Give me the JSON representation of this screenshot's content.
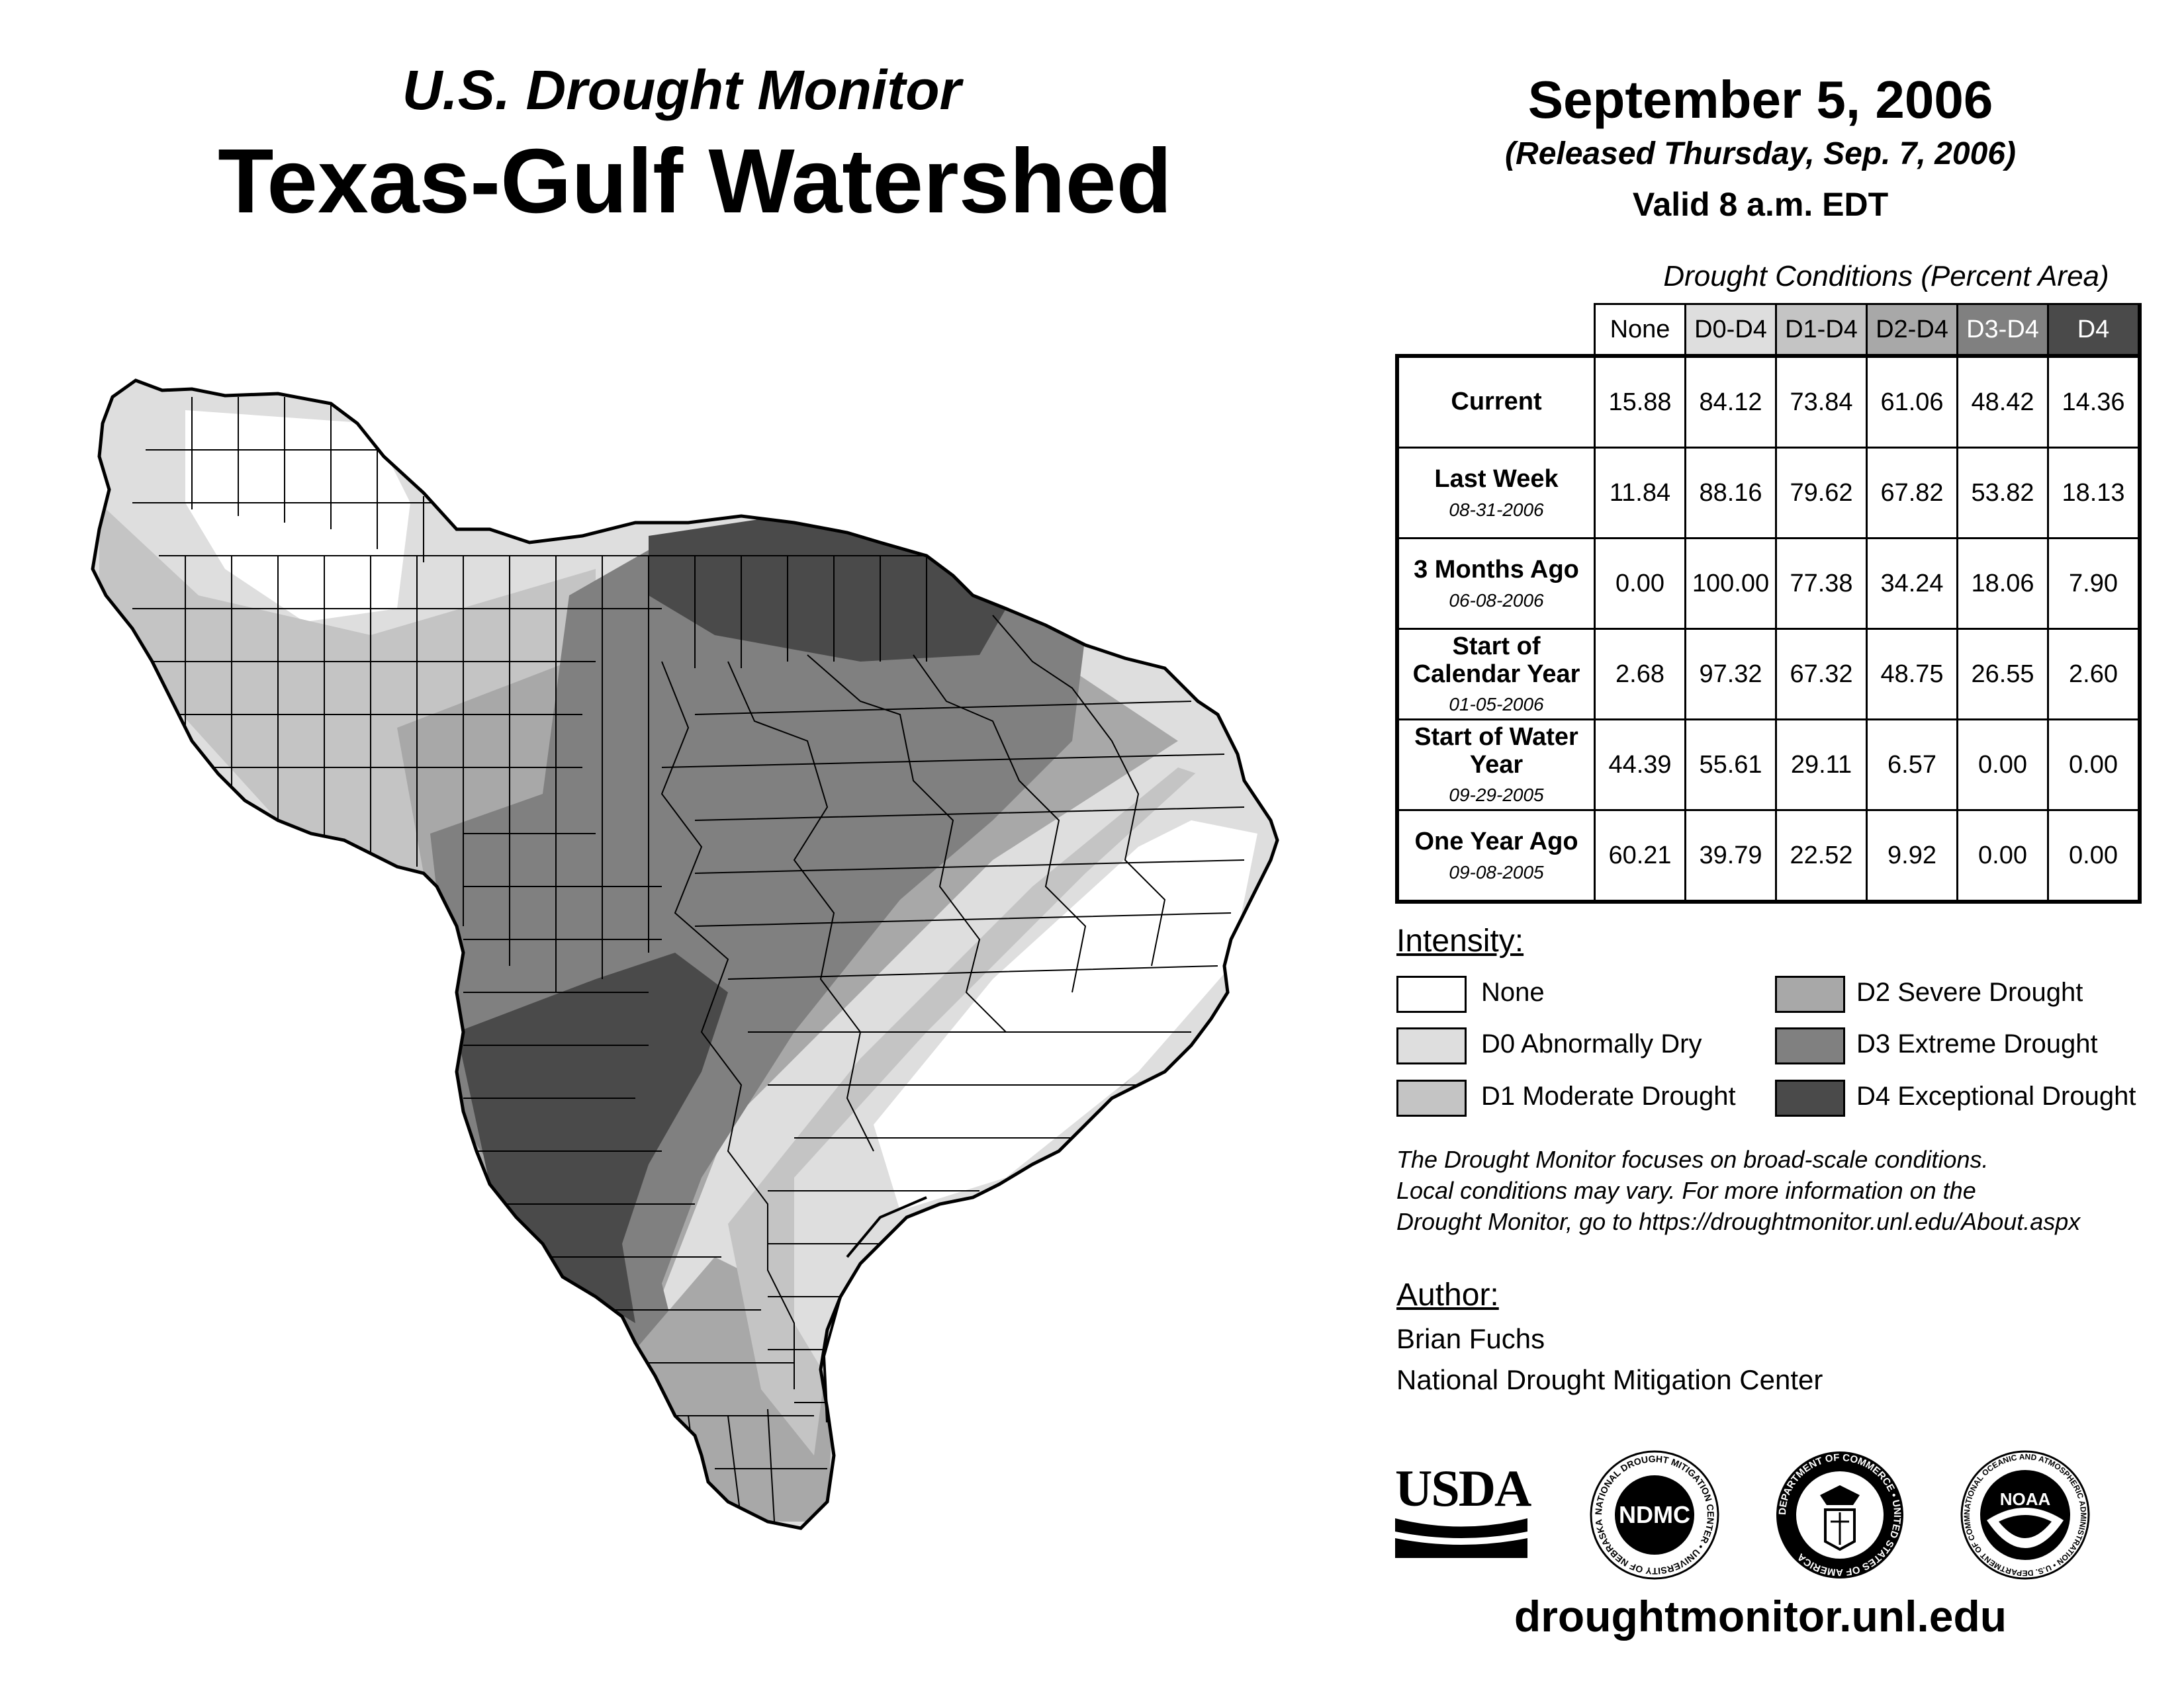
{
  "header": {
    "subtitle": "U.S. Drought Monitor",
    "title": "Texas-Gulf Watershed",
    "date": "September 5, 2006",
    "released": "(Released Thursday, Sep. 7, 2006)",
    "valid": "Valid 8 a.m. EDT"
  },
  "table": {
    "caption": "Drought Conditions (Percent Area)",
    "columns": [
      "None",
      "D0-D4",
      "D1-D4",
      "D2-D4",
      "D3-D4",
      "D4"
    ],
    "rows": [
      {
        "label": "Current",
        "date": "",
        "values": [
          "15.88",
          "84.12",
          "73.84",
          "61.06",
          "48.42",
          "14.36"
        ]
      },
      {
        "label": "Last Week",
        "date": "08-31-2006",
        "values": [
          "11.84",
          "88.16",
          "79.62",
          "67.82",
          "53.82",
          "18.13"
        ]
      },
      {
        "label": "3 Months Ago",
        "date": "06-08-2006",
        "values": [
          "0.00",
          "100.00",
          "77.38",
          "34.24",
          "18.06",
          "7.90"
        ]
      },
      {
        "label": "Start of Calendar Year",
        "date": "01-05-2006",
        "values": [
          "2.68",
          "97.32",
          "67.32",
          "48.75",
          "26.55",
          "2.60"
        ]
      },
      {
        "label": "Start of Water Year",
        "date": "09-29-2005",
        "values": [
          "44.39",
          "55.61",
          "29.11",
          "6.57",
          "0.00",
          "0.00"
        ]
      },
      {
        "label": "One Year Ago",
        "date": "09-08-2005",
        "values": [
          "60.21",
          "39.79",
          "22.52",
          "9.92",
          "0.00",
          "0.00"
        ]
      }
    ]
  },
  "intensity": {
    "heading": "Intensity:",
    "items": [
      {
        "label": "None",
        "color": "#ffffff"
      },
      {
        "label": "D0 Abnormally Dry",
        "color": "#dedede"
      },
      {
        "label": "D1 Moderate Drought",
        "color": "#c4c4c4"
      },
      {
        "label": "D2 Severe Drought",
        "color": "#a8a8a8"
      },
      {
        "label": "D3 Extreme Drought",
        "color": "#808080"
      },
      {
        "label": "D4 Exceptional Drought",
        "color": "#4a4a4a"
      }
    ]
  },
  "note": {
    "line1": "The Drought Monitor focuses on broad-scale conditions.",
    "line2": "Local conditions may vary. For more information on the",
    "line3": "Drought Monitor, go to https://droughtmonitor.unl.edu/About.aspx"
  },
  "author": {
    "heading": "Author:",
    "name": "Brian Fuchs",
    "org": "National Drought Mitigation Center"
  },
  "logos": {
    "usda": "USDA",
    "ndmc": "NDMC",
    "ndmc_ring": "NATIONAL DROUGHT MITIGATION CENTER • UNIVERSITY OF NEBRASKA",
    "doc_ring": "DEPARTMENT OF COMMERCE • UNITED STATES OF AMERICA",
    "noaa": "NOAA",
    "noaa_ring": "NATIONAL OCEANIC AND ATMOSPHERIC ADMINISTRATION • U.S. DEPARTMENT OF COMMERCE"
  },
  "footer": {
    "url": "droughtmonitor.unl.edu"
  }
}
